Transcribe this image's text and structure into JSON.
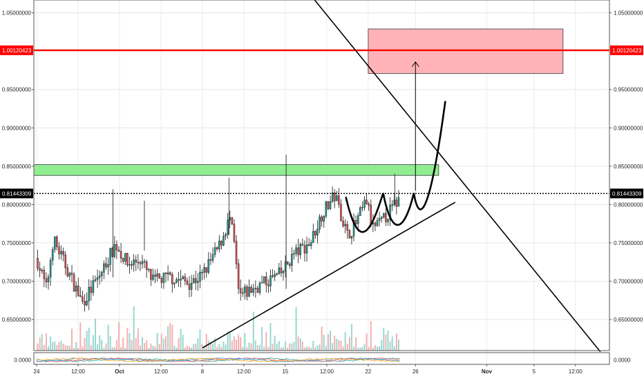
{
  "chart_data": {
    "type": "candlestick",
    "title": "",
    "xlabel": "",
    "ylabel": "",
    "ylim": [
      0.6095,
      1.0668
    ],
    "grid": true,
    "price_ticks": [
      "1.05000000",
      "0.95000000",
      "0.90000000",
      "0.85000000",
      "0.80000000",
      "0.75000000",
      "0.70000000",
      "0.65000000"
    ],
    "price_tick_values": [
      1.05,
      0.95,
      0.9,
      0.85,
      0.8,
      0.75,
      0.7,
      0.65
    ],
    "resistance_line": {
      "label": "1.00120423",
      "value": 1.00120423,
      "color": "#ff0000"
    },
    "current_price": {
      "label": "0.81443309",
      "value": 0.81443309,
      "color": "#000000"
    },
    "indicator_tick": {
      "label": "0.0000",
      "value": 0
    },
    "time_ticks": [
      {
        "label": "24",
        "day": 0
      },
      {
        "label": "12:00",
        "day": 0.5
      },
      {
        "label": "Oct",
        "day": 1
      },
      {
        "label": "12:00",
        "day": 1.5
      },
      {
        "label": "8",
        "day": 2
      },
      {
        "label": "12:00",
        "day": 2.5
      },
      {
        "label": "15",
        "day": 3
      },
      {
        "label": "12:00",
        "day": 3.5
      },
      {
        "label": "22",
        "day": 4
      },
      {
        "label": "26",
        "day": 4.57
      },
      {
        "label": "Nov",
        "day": 5.43
      },
      {
        "label": "5",
        "day": 6
      },
      {
        "label": "12:00",
        "day": 6.5
      }
    ],
    "zones": [
      {
        "name": "support-zone",
        "color": "#90ee90",
        "day_start": -0.3,
        "day_end": 4.85,
        "price_low": 0.838,
        "price_high": 0.852
      },
      {
        "name": "target-zone",
        "color": "#ffb3b8",
        "day_start": 4.0,
        "day_end": 6.35,
        "price_low": 0.971,
        "price_high": 1.029
      }
    ],
    "trendlines": [
      {
        "name": "descending-trendline",
        "from": [
          3.33,
          1.07
        ],
        "to": [
          6.8,
          0.608
        ]
      },
      {
        "name": "ascending-trendline",
        "from": [
          2.0,
          0.613
        ],
        "to": [
          5.05,
          0.803
        ]
      }
    ],
    "target_arrow": {
      "from": [
        4.57,
        0.818
      ],
      "to": [
        4.57,
        0.986
      ]
    },
    "candles_sample": {
      "first_close": 0.73,
      "price_path": [
        [
          0,
          0.73
        ],
        [
          0.12,
          0.69
        ],
        [
          0.2,
          0.755
        ],
        [
          0.35,
          0.72
        ],
        [
          0.55,
          0.672
        ],
        [
          0.75,
          0.705
        ],
        [
          0.95,
          0.748
        ],
        [
          1.1,
          0.722
        ],
        [
          1.25,
          0.728
        ],
        [
          1.4,
          0.7
        ],
        [
          1.6,
          0.705
        ],
        [
          1.85,
          0.698
        ],
        [
          2.0,
          0.708
        ],
        [
          2.2,
          0.745
        ],
        [
          2.33,
          0.782
        ],
        [
          2.38,
          0.752
        ],
        [
          2.44,
          0.68
        ],
        [
          2.7,
          0.695
        ],
        [
          2.95,
          0.71
        ],
        [
          3.1,
          0.735
        ],
        [
          3.3,
          0.75
        ],
        [
          3.45,
          0.79
        ],
        [
          3.6,
          0.812
        ],
        [
          3.75,
          0.76
        ],
        [
          3.85,
          0.775
        ],
        [
          3.98,
          0.805
        ],
        [
          4.05,
          0.77
        ],
        [
          4.15,
          0.775
        ],
        [
          4.25,
          0.79
        ],
        [
          4.38,
          0.808
        ]
      ]
    }
  }
}
